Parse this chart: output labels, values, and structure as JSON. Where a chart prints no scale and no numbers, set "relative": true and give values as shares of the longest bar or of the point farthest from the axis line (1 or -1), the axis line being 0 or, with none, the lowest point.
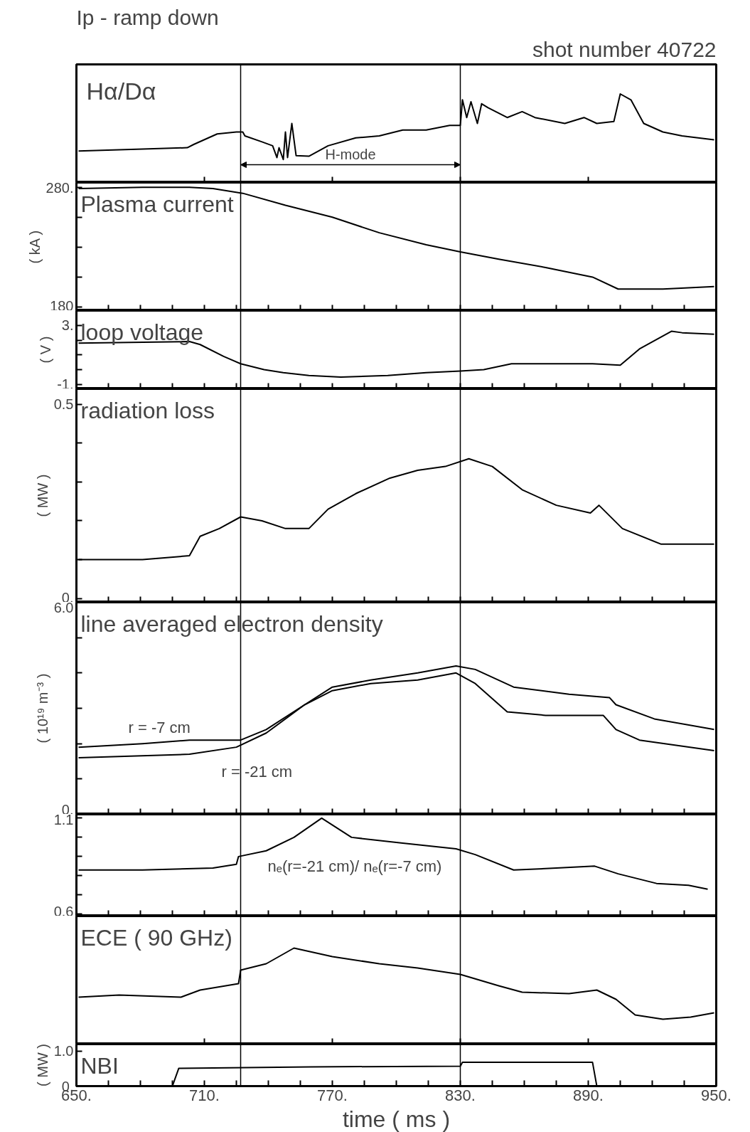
{
  "chart_data": [
    {
      "type": "line",
      "title": "Ip - ramp down",
      "subtitle": "shot number 40722",
      "relative": true,
      "tick_labels": false,
      "xlim": [
        650,
        950
      ],
      "xticks": [
        650,
        710,
        770,
        830,
        890,
        950
      ],
      "annotations": [
        "Hα/Dα",
        "H-mode"
      ],
      "ref_lines": [
        {
          "axis": "x",
          "value": 727,
          "color": "#000000"
        },
        {
          "axis": "x",
          "value": 830,
          "color": "#000000"
        }
      ],
      "series": [
        {
          "color": "#000000",
          "x": [
            651,
            681,
            702,
            705,
            716,
            725,
            728,
            729,
            737,
            742,
            744,
            745,
            747,
            748,
            749,
            751,
            753,
            759,
            768,
            781,
            792,
            803,
            814,
            825,
            830,
            831,
            833,
            835,
            838,
            840,
            843,
            852,
            859,
            865,
            879,
            888,
            894,
            902,
            905,
            910,
            916,
            925,
            934,
            949
          ],
          "values": [
            0.13,
            0.16,
            0.18,
            0.23,
            0.39,
            0.42,
            0.42,
            0.36,
            0.27,
            0.21,
            0.03,
            0.18,
            0.0,
            0.42,
            0.03,
            0.55,
            0.06,
            0.05,
            0.21,
            0.33,
            0.36,
            0.45,
            0.45,
            0.52,
            0.52,
            0.91,
            0.64,
            0.88,
            0.55,
            0.85,
            0.79,
            0.64,
            0.73,
            0.64,
            0.55,
            0.64,
            0.55,
            0.58,
            1.0,
            0.91,
            0.55,
            0.42,
            0.36,
            0.3
          ]
        }
      ]
    },
    {
      "type": "line",
      "title": "Plasma current",
      "ylabel": "( kA )",
      "tick_labels": "y",
      "xlim": [
        650,
        950
      ],
      "xticks": [
        650,
        665,
        680,
        695,
        710,
        725,
        740,
        755,
        770,
        785,
        800,
        815,
        830,
        845,
        860,
        875,
        890,
        905,
        920,
        935,
        950
      ],
      "ylim": [
        177,
        284
      ],
      "yticks": [
        {
          "value": 180,
          "label": "180"
        },
        {
          "value": 205,
          "label": null
        },
        {
          "value": 230,
          "label": null
        },
        {
          "value": 255,
          "label": null
        },
        {
          "value": 280,
          "label": "280."
        }
      ],
      "ref_lines": [
        {
          "axis": "x",
          "value": 727,
          "color": "#000000"
        },
        {
          "axis": "x",
          "value": 830,
          "color": "#000000"
        }
      ],
      "series": [
        {
          "color": "#000000",
          "x": [
            651,
            681,
            703,
            714,
            728,
            748,
            770,
            792,
            814,
            830,
            848,
            870,
            892,
            904,
            925,
            949
          ],
          "values": [
            279,
            280,
            280,
            279,
            275,
            265,
            255,
            242,
            232,
            226,
            220,
            213,
            205,
            195,
            195,
            197
          ]
        }
      ]
    },
    {
      "type": "line",
      "title": "loop voltage",
      "ylabel": "( V )",
      "tick_labels": "y",
      "xlim": [
        650,
        950
      ],
      "xticks": [
        650,
        665,
        680,
        695,
        710,
        725,
        740,
        755,
        770,
        785,
        800,
        815,
        830,
        845,
        860,
        875,
        890,
        905,
        920,
        935,
        950
      ],
      "ylim": [
        -1.3,
        4.0
      ],
      "yticks": [
        {
          "value": -1,
          "label": "-1."
        },
        {
          "value": 0,
          "label": null
        },
        {
          "value": 1,
          "label": null
        },
        {
          "value": 2,
          "label": null
        },
        {
          "value": 3,
          "label": "3."
        }
      ],
      "ref_lines": [
        {
          "axis": "x",
          "value": 727,
          "color": "#000000"
        },
        {
          "axis": "x",
          "value": 830,
          "color": "#000000"
        }
      ],
      "series": [
        {
          "color": "#000000",
          "x": [
            651,
            703,
            708,
            719,
            727,
            738,
            747,
            759,
            774,
            796,
            814,
            830,
            841,
            854,
            892,
            905,
            914,
            929,
            934,
            949
          ],
          "values": [
            1.8,
            1.9,
            1.7,
            0.9,
            0.4,
            0.0,
            -0.2,
            -0.4,
            -0.5,
            -0.4,
            -0.2,
            -0.1,
            0.0,
            0.4,
            0.4,
            0.3,
            1.4,
            2.6,
            2.5,
            2.4
          ]
        }
      ]
    },
    {
      "type": "line",
      "title": "radiation loss",
      "ylabel": "( MW )",
      "tick_labels": "y",
      "xlim": [
        650,
        950
      ],
      "xticks": [
        650,
        665,
        680,
        695,
        710,
        725,
        740,
        755,
        770,
        785,
        800,
        815,
        830,
        845,
        860,
        875,
        890,
        905,
        920,
        935,
        950
      ],
      "ylim": [
        -0.01,
        0.54
      ],
      "yticks": [
        {
          "value": 0,
          "label": "0."
        },
        {
          "value": 0.1,
          "label": null
        },
        {
          "value": 0.2,
          "label": null
        },
        {
          "value": 0.3,
          "label": null
        },
        {
          "value": 0.4,
          "label": null
        },
        {
          "value": 0.5,
          "label": "0.5"
        }
      ],
      "ref_lines": [
        {
          "axis": "x",
          "value": 727,
          "color": "#000000"
        },
        {
          "axis": "x",
          "value": 830,
          "color": "#000000"
        }
      ],
      "series": [
        {
          "color": "#000000",
          "x": [
            651,
            681,
            703,
            708,
            717,
            727,
            737,
            748,
            759,
            768,
            781,
            797,
            810,
            823,
            834,
            845,
            859,
            875,
            891,
            895,
            906,
            924,
            949
          ],
          "values": [
            0.1,
            0.1,
            0.11,
            0.16,
            0.18,
            0.21,
            0.2,
            0.18,
            0.18,
            0.23,
            0.27,
            0.31,
            0.33,
            0.34,
            0.36,
            0.34,
            0.28,
            0.24,
            0.22,
            0.24,
            0.18,
            0.14,
            0.14
          ]
        }
      ]
    },
    {
      "type": "line",
      "title": "line averaged electron density",
      "ylabel": "( 10¹⁹ m⁻³ )",
      "tick_labels": "y",
      "xlim": [
        650,
        950
      ],
      "xticks": [
        650,
        665,
        680,
        695,
        710,
        725,
        740,
        755,
        770,
        785,
        800,
        815,
        830,
        845,
        860,
        875,
        890,
        905,
        920,
        935,
        950
      ],
      "ylim": [
        0,
        6
      ],
      "yticks": [
        {
          "value": 0,
          "label": "0."
        },
        {
          "value": 1,
          "label": null
        },
        {
          "value": 2,
          "label": null
        },
        {
          "value": 3,
          "label": null
        },
        {
          "value": 4,
          "label": null
        },
        {
          "value": 5,
          "label": null
        },
        {
          "value": 6,
          "label": "6.0"
        }
      ],
      "ref_lines": [
        {
          "axis": "x",
          "value": 727,
          "color": "#000000"
        },
        {
          "axis": "x",
          "value": 830,
          "color": "#000000"
        }
      ],
      "series": [
        {
          "name": "r = -7 cm",
          "color": "#000000",
          "x": [
            651,
            681,
            703,
            727,
            739,
            757,
            770,
            788,
            810,
            828,
            837,
            855,
            881,
            900,
            903,
            921,
            949
          ],
          "values": [
            1.9,
            2.0,
            2.1,
            2.1,
            2.4,
            3.1,
            3.6,
            3.8,
            4.0,
            4.2,
            4.1,
            3.6,
            3.4,
            3.3,
            3.1,
            2.7,
            2.4
          ]
        },
        {
          "name": "r = -21 cm",
          "color": "#000000",
          "x": [
            651,
            703,
            725,
            739,
            757,
            770,
            788,
            810,
            828,
            837,
            852,
            870,
            897,
            903,
            914,
            949
          ],
          "values": [
            1.6,
            1.7,
            1.9,
            2.3,
            3.1,
            3.5,
            3.7,
            3.8,
            4.0,
            3.7,
            2.9,
            2.8,
            2.8,
            2.4,
            2.1,
            1.8
          ]
        }
      ]
    },
    {
      "type": "line",
      "ylabel": null,
      "tick_labels": "y",
      "xlim": [
        650,
        950
      ],
      "xticks": [
        650,
        665,
        680,
        695,
        710,
        725,
        740,
        755,
        770,
        785,
        800,
        815,
        830,
        845,
        860,
        875,
        890,
        905,
        920,
        935,
        950
      ],
      "ylim": [
        0.59,
        1.12
      ],
      "yticks": [
        {
          "value": 0.6,
          "label": "0.6"
        },
        {
          "value": 0.7,
          "label": null
        },
        {
          "value": 0.8,
          "label": null
        },
        {
          "value": 0.9,
          "label": null
        },
        {
          "value": 1.0,
          "label": null
        },
        {
          "value": 1.1,
          "label": "1.1"
        }
      ],
      "ref_lines": [
        {
          "axis": "x",
          "value": 727,
          "color": "#000000"
        },
        {
          "axis": "x",
          "value": 830,
          "color": "#000000"
        }
      ],
      "series": [
        {
          "name": "nₑ(r=-21 cm)/ nₑ(r=-7 cm)",
          "color": "#000000",
          "x": [
            651,
            681,
            714,
            725,
            726,
            739,
            752,
            765,
            779,
            803,
            828,
            837,
            855,
            875,
            893,
            904,
            922,
            937,
            946
          ],
          "values": [
            0.83,
            0.83,
            0.84,
            0.86,
            0.9,
            0.93,
            1.0,
            1.1,
            1.0,
            0.97,
            0.94,
            0.91,
            0.83,
            0.84,
            0.85,
            0.81,
            0.76,
            0.75,
            0.73
          ]
        }
      ]
    },
    {
      "type": "line",
      "title": "ECE ( 90 GHz)",
      "relative": true,
      "tick_labels": false,
      "xlim": [
        650,
        950
      ],
      "xticks": [
        650,
        710,
        770,
        830,
        890,
        950
      ],
      "ref_lines": [
        {
          "axis": "x",
          "value": 727,
          "color": "#000000"
        },
        {
          "axis": "x",
          "value": 830,
          "color": "#000000"
        }
      ],
      "series": [
        {
          "color": "#000000",
          "x": [
            651,
            670,
            699,
            708,
            726,
            727,
            739,
            752,
            770,
            792,
            810,
            830,
            848,
            859,
            881,
            894,
            903,
            912,
            925,
            938,
            949
          ],
          "values": [
            0.31,
            0.34,
            0.31,
            0.41,
            0.5,
            0.69,
            0.78,
            1.0,
            0.88,
            0.78,
            0.72,
            0.63,
            0.47,
            0.38,
            0.36,
            0.41,
            0.28,
            0.06,
            0.0,
            0.03,
            0.09
          ]
        }
      ]
    },
    {
      "type": "line",
      "title": "NBI",
      "ylabel": "( MW )",
      "xlabel": "time ( ms )",
      "xlim": [
        650,
        950
      ],
      "xticks": [
        {
          "value": 650,
          "label": "650."
        },
        {
          "value": 665,
          "label": null
        },
        {
          "value": 680,
          "label": null
        },
        {
          "value": 695,
          "label": null
        },
        {
          "value": 710,
          "label": "710."
        },
        {
          "value": 725,
          "label": null
        },
        {
          "value": 740,
          "label": null
        },
        {
          "value": 755,
          "label": null
        },
        {
          "value": 770,
          "label": "770."
        },
        {
          "value": 785,
          "label": null
        },
        {
          "value": 800,
          "label": null
        },
        {
          "value": 815,
          "label": null
        },
        {
          "value": 830,
          "label": "830."
        },
        {
          "value": 845,
          "label": null
        },
        {
          "value": 860,
          "label": null
        },
        {
          "value": 875,
          "label": null
        },
        {
          "value": 890,
          "label": "890."
        },
        {
          "value": 905,
          "label": null
        },
        {
          "value": 920,
          "label": null
        },
        {
          "value": 935,
          "label": null
        },
        {
          "value": 950,
          "label": "950."
        }
      ],
      "ylim": [
        0,
        1.2
      ],
      "yticks": [
        {
          "value": 0,
          "label": "0."
        },
        {
          "value": 1.0,
          "label": "1.0"
        }
      ],
      "ref_lines": [
        {
          "axis": "x",
          "value": 727,
          "color": "#000000"
        },
        {
          "axis": "x",
          "value": 830,
          "color": "#000000"
        }
      ],
      "series": [
        {
          "color": "#000000",
          "x": [
            650,
            695,
            698,
            760,
            830,
            831,
            892,
            894,
            950
          ],
          "values": [
            0,
            0,
            0.51,
            0.55,
            0.57,
            0.68,
            0.68,
            0,
            0
          ]
        }
      ]
    }
  ]
}
